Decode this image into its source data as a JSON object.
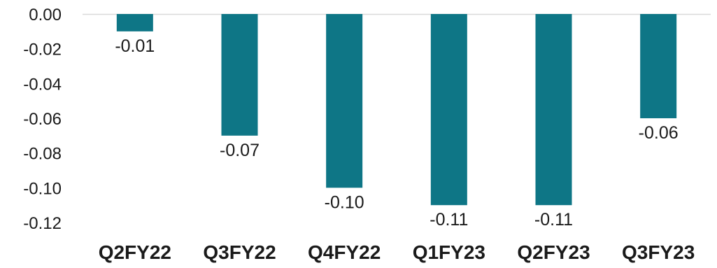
{
  "chart_data": {
    "type": "bar",
    "title": "",
    "xlabel": "",
    "ylabel": "",
    "categories": [
      "Q2FY22",
      "Q3FY22",
      "Q4FY22",
      "Q1FY23",
      "Q2FY23",
      "Q3FY23"
    ],
    "values": [
      -0.01,
      -0.07,
      -0.1,
      -0.11,
      -0.11,
      -0.06
    ],
    "data_labels": [
      "-0.01",
      "-0.07",
      "-0.10",
      "-0.11",
      "-0.11",
      "-0.06"
    ],
    "ylim": [
      -0.12,
      0.0
    ],
    "yticks": [
      0.0,
      -0.02,
      -0.04,
      -0.06,
      -0.08,
      -0.1,
      -0.12
    ],
    "ytick_labels": [
      "0.00",
      "-0.02",
      "-0.04",
      "-0.06",
      "-0.08",
      "-0.10",
      "-0.12"
    ],
    "grid": false,
    "legend": "none",
    "colors": {
      "bar": "#0e7686",
      "axis_line": "#d9d9d9",
      "text": "#1a1a1a"
    }
  }
}
